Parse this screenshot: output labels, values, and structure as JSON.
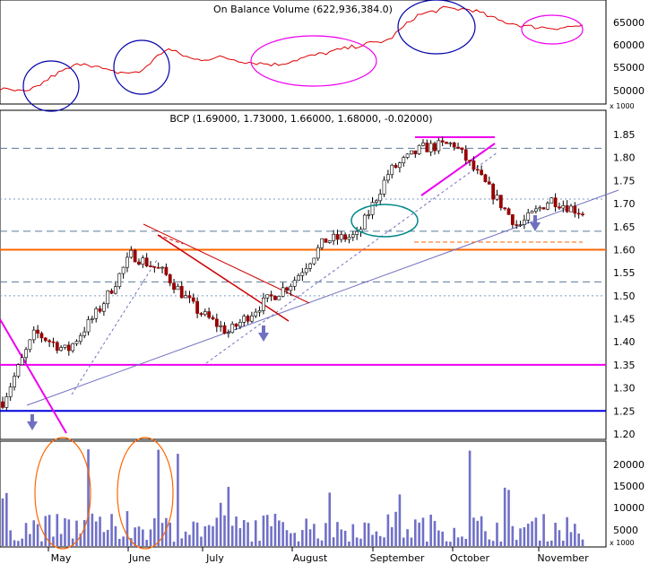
{
  "obv_panel": {
    "title": "On Balance Volume (622,936,384.0)",
    "ticks": [
      "65000",
      "60000",
      "55000",
      "50000"
    ],
    "multiplier": "x 1000"
  },
  "price_panel": {
    "title": "BCP (1.69000, 1.73000, 1.66000, 1.68000, -0.02000)",
    "ticks": [
      "1.85",
      "1.80",
      "1.75",
      "1.70",
      "1.65",
      "1.60",
      "1.55",
      "1.50",
      "1.45",
      "1.40",
      "1.35",
      "1.30",
      "1.25",
      "1.20"
    ]
  },
  "volume_panel": {
    "ticks": [
      "20000",
      "15000",
      "10000",
      "5000"
    ],
    "multiplier": "x 1000"
  },
  "x_axis": {
    "months": [
      "May",
      "June",
      "July",
      "August",
      "September",
      "October",
      "November"
    ]
  },
  "colors": {
    "frame": "#000000",
    "obv_line": "#dd0000",
    "bull_candle": "#ffffff",
    "bear_candle": "#990000",
    "trendline": "#7070c0",
    "volume_bar": "#7070c8",
    "support_blue": "#0000dd",
    "resistance_orange": "#ff6600",
    "magenta_line": "#ee00ee",
    "circle_blue": "#0000aa",
    "circle_magenta": "#ee00ee",
    "circle_teal": "#008888",
    "oval_orange": "#ff6600",
    "arrow": "#7070c0"
  },
  "chart_data": {
    "type": "candlestick",
    "title": "BCP (1.69000, 1.73000, 1.66000, 1.68000, -0.02000)",
    "x": [
      "May",
      "June",
      "July",
      "August",
      "September",
      "October",
      "November"
    ],
    "price_ylim": [
      1.2,
      1.85
    ],
    "price_ticks": [
      1.85,
      1.8,
      1.75,
      1.7,
      1.65,
      1.6,
      1.55,
      1.5,
      1.45,
      1.4,
      1.35,
      1.3,
      1.25,
      1.2
    ],
    "price_series_approx": [
      {
        "month": "early May",
        "close": 1.27
      },
      {
        "month": "mid May",
        "close": 1.42
      },
      {
        "month": "late May",
        "close": 1.38
      },
      {
        "month": "early June",
        "close": 1.47
      },
      {
        "month": "mid June",
        "close": 1.59
      },
      {
        "month": "late June",
        "close": 1.55
      },
      {
        "month": "mid July",
        "close": 1.47
      },
      {
        "month": "late July",
        "close": 1.42
      },
      {
        "month": "early August",
        "close": 1.48
      },
      {
        "month": "mid August",
        "close": 1.53
      },
      {
        "month": "late August",
        "close": 1.62
      },
      {
        "month": "early September",
        "close": 1.63
      },
      {
        "month": "mid September",
        "close": 1.77
      },
      {
        "month": "late September",
        "close": 1.82
      },
      {
        "month": "early October",
        "close": 1.83
      },
      {
        "month": "mid October",
        "close": 1.74
      },
      {
        "month": "late October",
        "close": 1.65
      },
      {
        "month": "early November",
        "close": 1.71
      },
      {
        "month": "mid November",
        "close": 1.68
      }
    ],
    "horizontal_levels": [
      {
        "value": 1.25,
        "color": "blue"
      },
      {
        "value": 1.35,
        "color": "magenta"
      },
      {
        "value": 1.6,
        "color": "orange"
      },
      {
        "value": 1.82,
        "style": "dashed"
      },
      {
        "value": 1.71,
        "style": "dotted"
      },
      {
        "value": 1.64,
        "style": "dashed"
      },
      {
        "value": 1.53,
        "style": "dashed"
      },
      {
        "value": 1.5,
        "style": "dotted"
      }
    ],
    "obv_ylim": [
      47000,
      67000
    ],
    "obv_ticks": [
      65000,
      60000,
      55000,
      50000
    ],
    "volume_ylim": [
      0,
      24000
    ],
    "volume_ticks": [
      20000,
      15000,
      10000,
      5000
    ]
  }
}
